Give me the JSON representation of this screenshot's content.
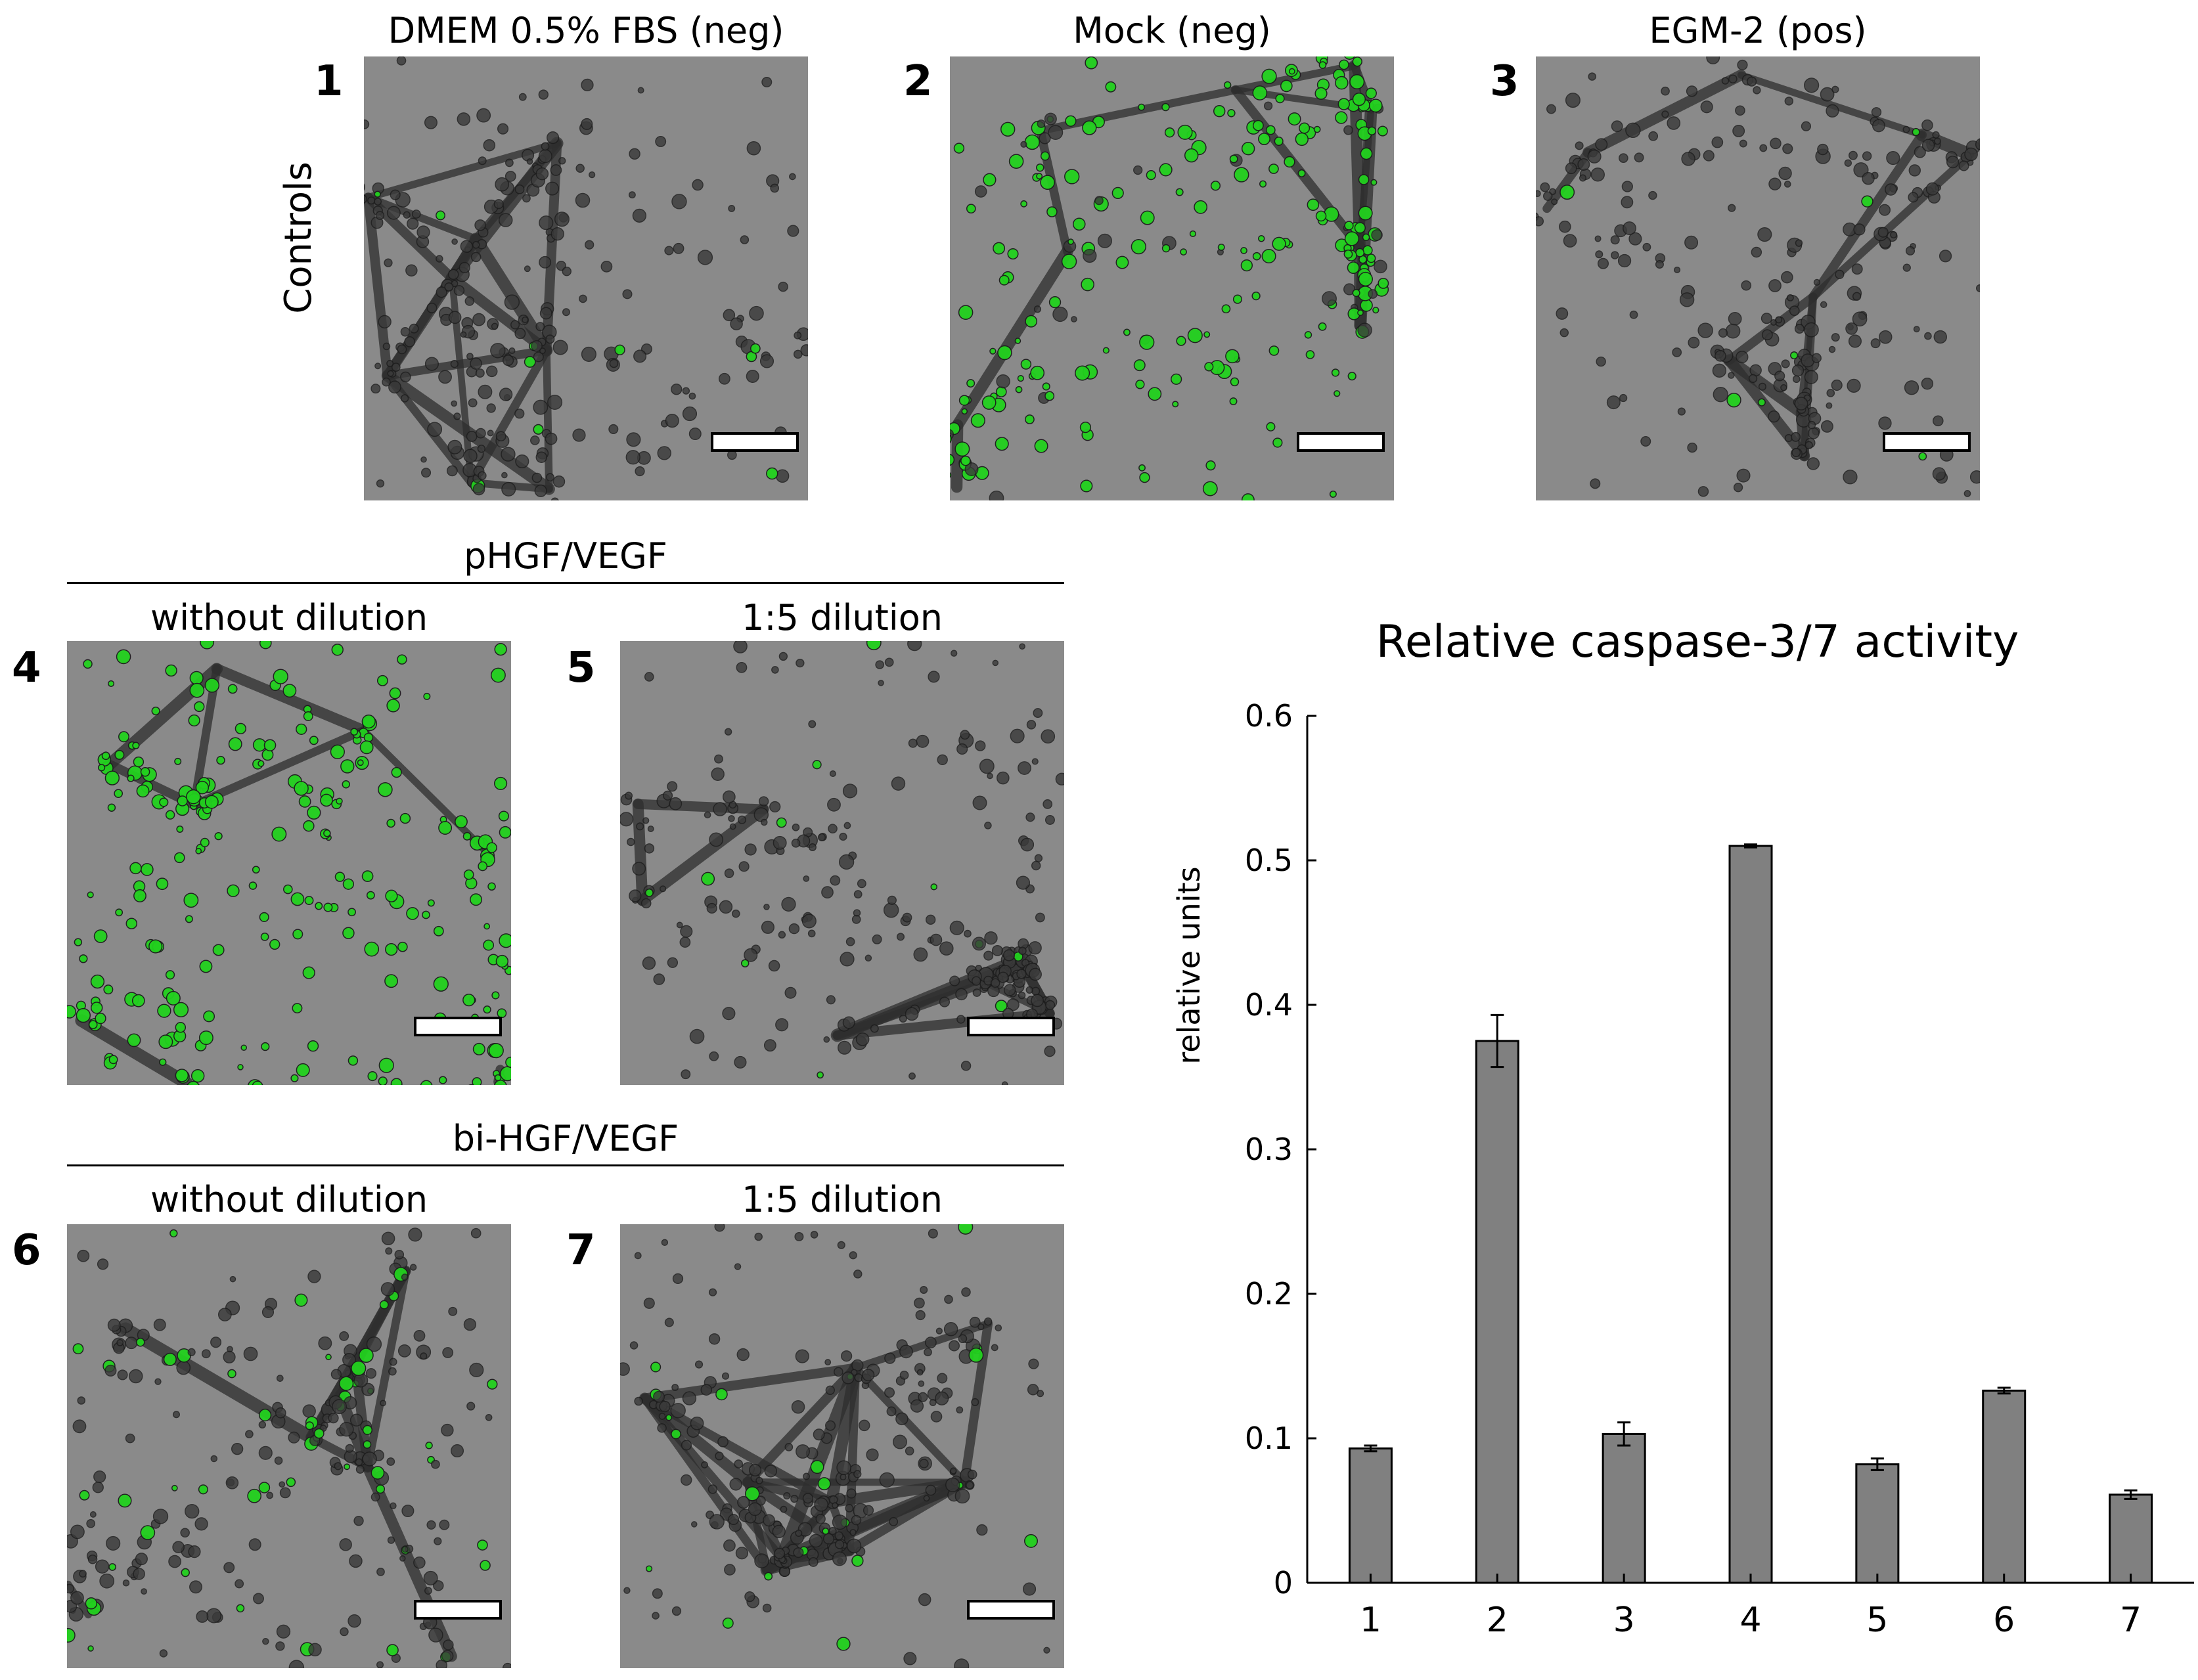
{
  "controls_label": "Controls",
  "panels": [
    {
      "number": "1",
      "title": "DMEM 0.5% FBS (neg)",
      "green_intensity": 0.05
    },
    {
      "number": "2",
      "title": "Mock (neg)",
      "green_intensity": 0.85
    },
    {
      "number": "3",
      "title": "EGM-2 (pos)",
      "green_intensity": 0.05
    },
    {
      "number": "4",
      "title": "without dilution",
      "green_intensity": 1.0
    },
    {
      "number": "5",
      "title": "1:5 dilution",
      "green_intensity": 0.05
    },
    {
      "number": "6",
      "title": "without dilution",
      "green_intensity": 0.2
    },
    {
      "number": "7",
      "title": "1:5 dilution",
      "green_intensity": 0.08
    }
  ],
  "groups": [
    {
      "label": "pHGF/VEGF"
    },
    {
      "label": "bi-HGF/VEGF"
    }
  ],
  "colors": {
    "bar": "#808080",
    "bar_stroke": "#000000",
    "cell_green": "#22d11e",
    "background_gray": "#8a8a8a"
  },
  "chart_data": {
    "type": "bar",
    "title": "Relative caspase-3/7 activity",
    "xlabel": "",
    "ylabel": "relative units",
    "categories": [
      "1",
      "2",
      "3",
      "4",
      "5",
      "6",
      "7"
    ],
    "values": [
      0.093,
      0.375,
      0.103,
      0.51,
      0.082,
      0.133,
      0.061
    ],
    "errors": [
      0.002,
      0.018,
      0.008,
      0.001,
      0.004,
      0.002,
      0.003
    ],
    "ylim": [
      0,
      0.6
    ],
    "yticks": [
      "0",
      "0.1",
      "0.2",
      "0.3",
      "0.4",
      "0.5",
      "0.6"
    ],
    "grid": false,
    "legend": "none"
  }
}
